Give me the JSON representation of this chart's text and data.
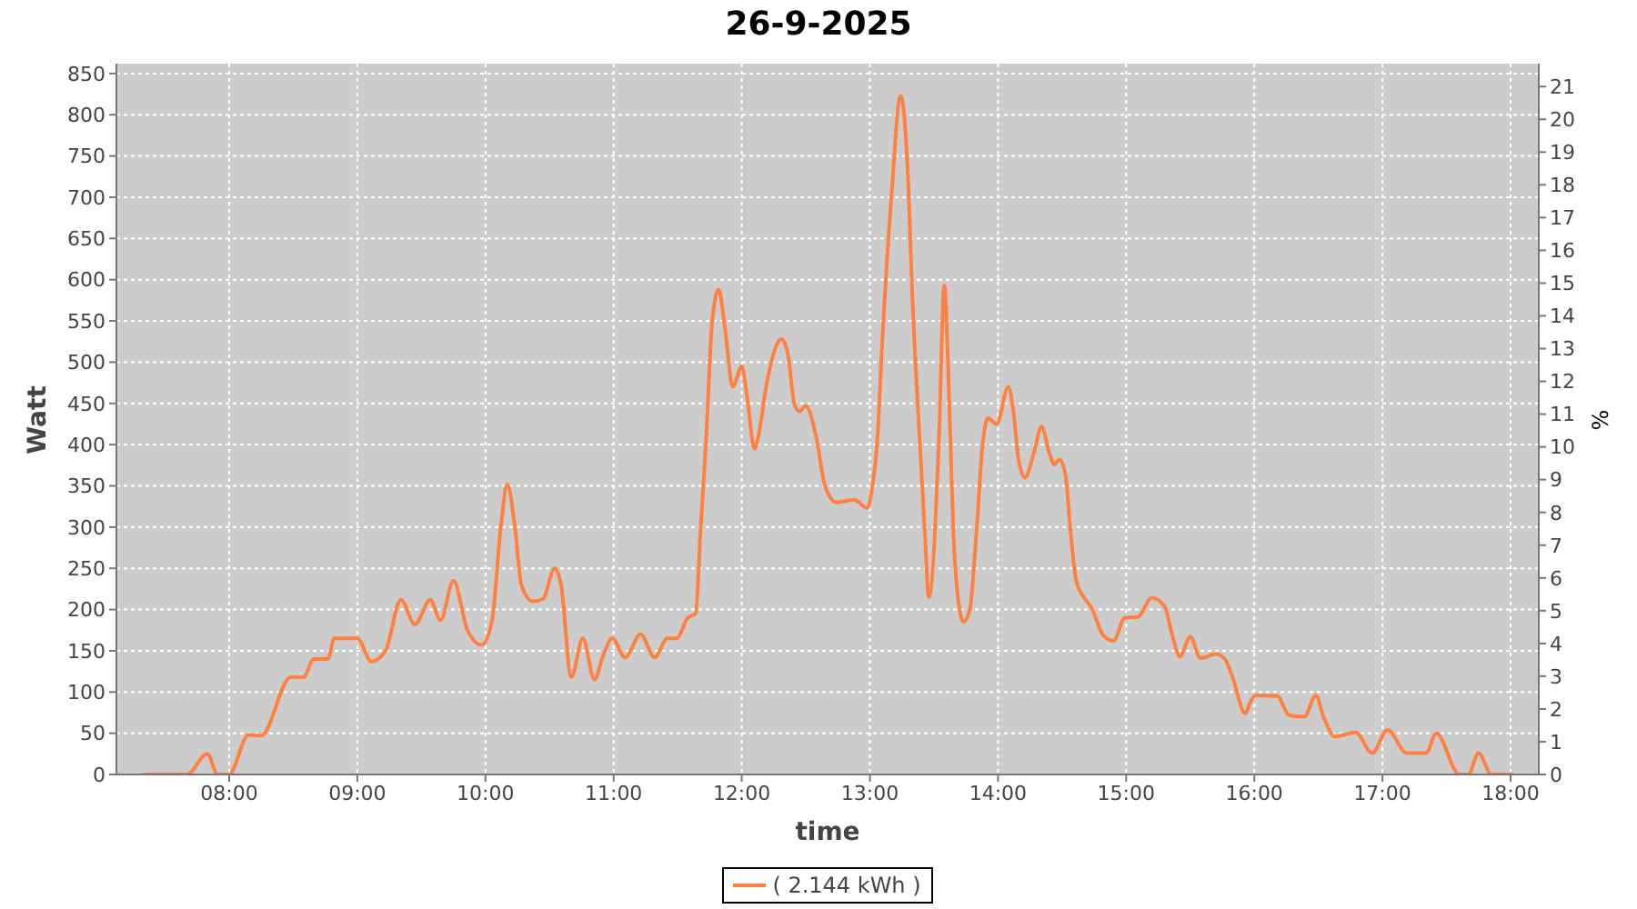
{
  "chart_data": {
    "type": "line",
    "title": "26-9-2025",
    "xlabel": "time",
    "ylabel": "Watt",
    "y2label": "%",
    "x": [
      7.32,
      7.67,
      7.83,
      7.91,
      8.0,
      8.15,
      8.25,
      8.48,
      8.58,
      8.66,
      8.77,
      8.82,
      9.0,
      9.11,
      9.22,
      9.34,
      9.45,
      9.57,
      9.65,
      9.75,
      9.86,
      9.97,
      10.05,
      10.12,
      10.17,
      10.23,
      10.28,
      10.37,
      10.45,
      10.54,
      10.59,
      10.67,
      10.76,
      10.85,
      10.92,
      10.99,
      11.09,
      11.21,
      11.32,
      11.42,
      11.49,
      11.58,
      11.64,
      11.68,
      11.72,
      11.77,
      11.82,
      11.87,
      11.93,
      12.0,
      12.04,
      12.1,
      12.13,
      12.19,
      12.27,
      12.31,
      12.36,
      12.41,
      12.45,
      12.5,
      12.58,
      12.65,
      12.74,
      12.88,
      12.98,
      13.02,
      13.06,
      13.09,
      13.17,
      13.24,
      13.3,
      13.33,
      13.38,
      13.43,
      13.46,
      13.54,
      13.58,
      13.62,
      13.65,
      13.7,
      13.73,
      13.78,
      13.83,
      13.88,
      13.92,
      13.99,
      14.08,
      14.12,
      14.16,
      14.21,
      14.28,
      14.34,
      14.4,
      14.44,
      14.48,
      14.53,
      14.56,
      14.61,
      14.66,
      14.73,
      14.82,
      14.9,
      14.99,
      15.09,
      15.2,
      15.3,
      15.36,
      15.42,
      15.5,
      15.58,
      15.7,
      15.77,
      15.83,
      15.93,
      15.97,
      16.01,
      16.18,
      16.27,
      16.39,
      16.48,
      16.54,
      16.63,
      16.79,
      16.92,
      17.04,
      17.19,
      17.34,
      17.42,
      17.6,
      17.67,
      17.75,
      17.85,
      18.02
    ],
    "series": [
      {
        "name": "( 2.144 kWh )",
        "color": "#ff8040",
        "values": [
          0,
          0,
          25,
          0,
          0,
          48,
          47,
          118,
          118,
          140,
          140,
          165,
          165,
          137,
          150,
          212,
          182,
          212,
          187,
          235,
          175,
          157,
          185,
          300,
          352,
          300,
          230,
          210,
          213,
          250,
          230,
          118,
          165,
          115,
          145,
          165,
          142,
          170,
          142,
          165,
          165,
          190,
          195,
          300,
          400,
          550,
          588,
          540,
          470,
          495,
          460,
          395,
          410,
          470,
          520,
          528,
          510,
          450,
          440,
          447,
          410,
          350,
          330,
          333,
          323,
          350,
          410,
          505,
          705,
          823,
          715,
          585,
          430,
          290,
          215,
          410,
          593,
          450,
          300,
          200,
          185,
          200,
          290,
          400,
          432,
          425,
          470,
          440,
          382,
          360,
          390,
          422,
          390,
          376,
          382,
          360,
          305,
          235,
          217,
          202,
          169,
          162,
          190,
          191,
          214,
          204,
          169,
          143,
          167,
          141,
          146,
          140,
          118,
          74,
          88,
          96,
          95,
          72,
          70,
          96,
          70,
          46,
          51,
          26,
          54,
          26,
          26,
          50,
          0,
          0,
          26,
          0,
          0
        ]
      }
    ],
    "xlim": [
      7.12,
      18.22
    ],
    "xticks": [
      {
        "value": 8,
        "label": "08:00"
      },
      {
        "value": 9,
        "label": "09:00"
      },
      {
        "value": 10,
        "label": "10:00"
      },
      {
        "value": 11,
        "label": "11:00"
      },
      {
        "value": 12,
        "label": "12:00"
      },
      {
        "value": 13,
        "label": "13:00"
      },
      {
        "value": 14,
        "label": "14:00"
      },
      {
        "value": 15,
        "label": "15:00"
      },
      {
        "value": 16,
        "label": "16:00"
      },
      {
        "value": 17,
        "label": "17:00"
      },
      {
        "value": 18,
        "label": "18:00"
      }
    ],
    "ylim": [
      0,
      862
    ],
    "yticks": [
      0,
      50,
      100,
      150,
      200,
      250,
      300,
      350,
      400,
      450,
      500,
      550,
      600,
      650,
      700,
      750,
      800,
      850
    ],
    "y2lim": [
      0,
      21.7
    ],
    "y2ticks": [
      0,
      1,
      2,
      3,
      4,
      5,
      6,
      7,
      8,
      9,
      10,
      11,
      12,
      13,
      14,
      15,
      16,
      17,
      18,
      19,
      20,
      21
    ],
    "grid": true,
    "legend": "bottom",
    "marker": "none",
    "line_style": "solid"
  }
}
